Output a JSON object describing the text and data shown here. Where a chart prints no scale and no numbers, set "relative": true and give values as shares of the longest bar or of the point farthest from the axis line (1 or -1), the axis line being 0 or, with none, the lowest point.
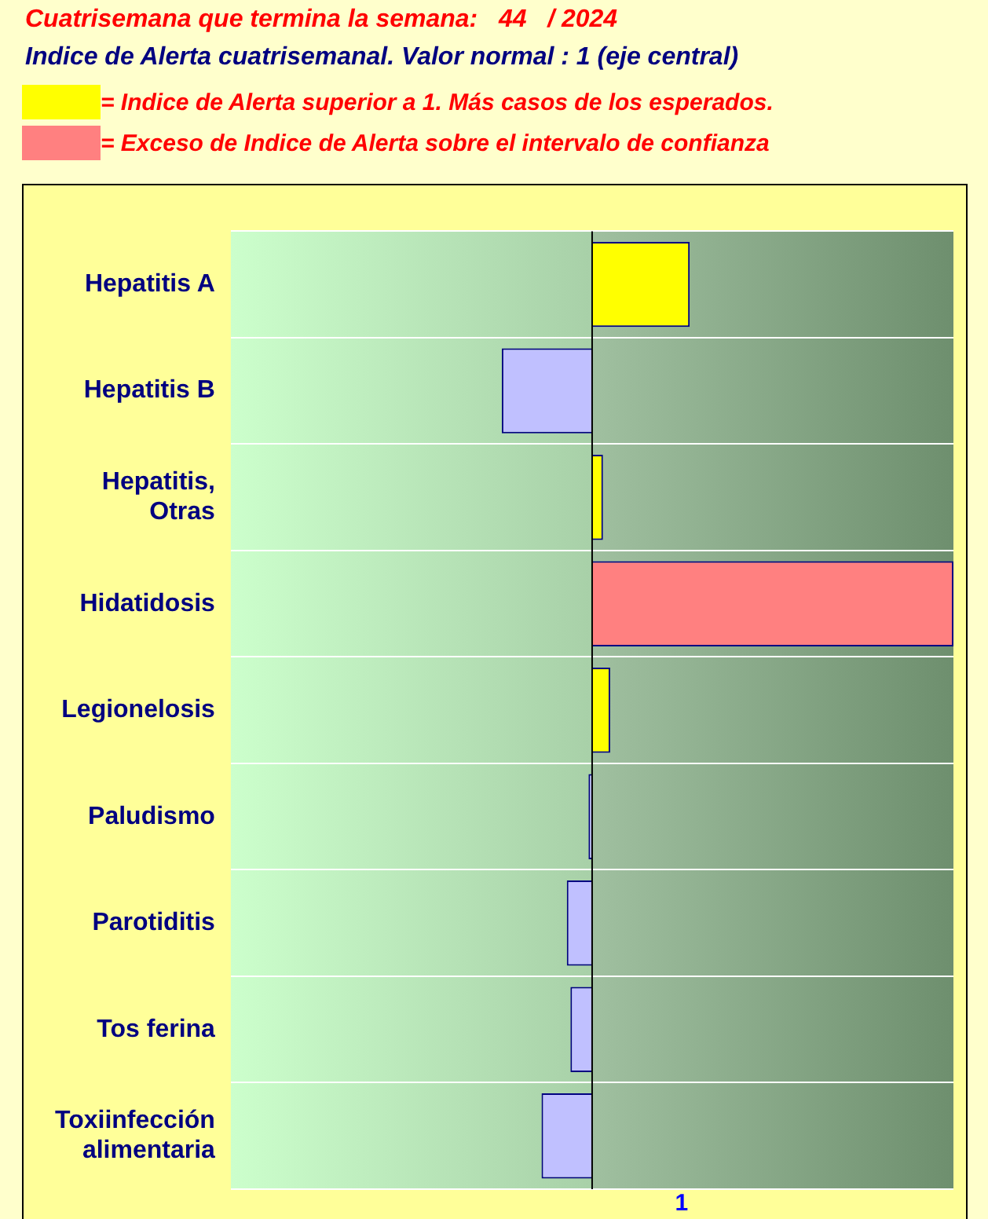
{
  "chart_data": {
    "type": "bar",
    "orientation": "horizontal",
    "relative": true,
    "title": "Cuatrisemana que termina la semana:   44   / 2024",
    "subtitle": "Indice de Alerta cuatrisemanal. Valor normal : 1 (eje central)",
    "categories": [
      "Hepatitis A",
      "Hepatitis B",
      "Hepatitis, Otras",
      "Hidatidosis",
      "Legionelosis",
      "Paludismo",
      "Parotiditis",
      "Tos ferina",
      "Toxiinfección alimentaria"
    ],
    "series": [
      {
        "name": "= Indice de Alerta superior a 1. Más casos de los esperados.",
        "color": "#ffff00",
        "values": [
          0.27,
          null,
          0.03,
          null,
          0.05,
          null,
          null,
          null,
          null
        ]
      },
      {
        "name": "= Exceso de Indice de Alerta sobre el intervalo de confianza",
        "color": "#ff8080",
        "values": [
          null,
          null,
          null,
          1,
          null,
          null,
          null,
          null,
          null
        ]
      },
      {
        "color": "#c0c0ff",
        "values": [
          null,
          -0.25,
          null,
          null,
          null,
          -0.01,
          -0.07,
          -0.06,
          -0.14
        ]
      }
    ],
    "annotations": [
      "1"
    ],
    "grid": "y",
    "legend": "top left"
  }
}
